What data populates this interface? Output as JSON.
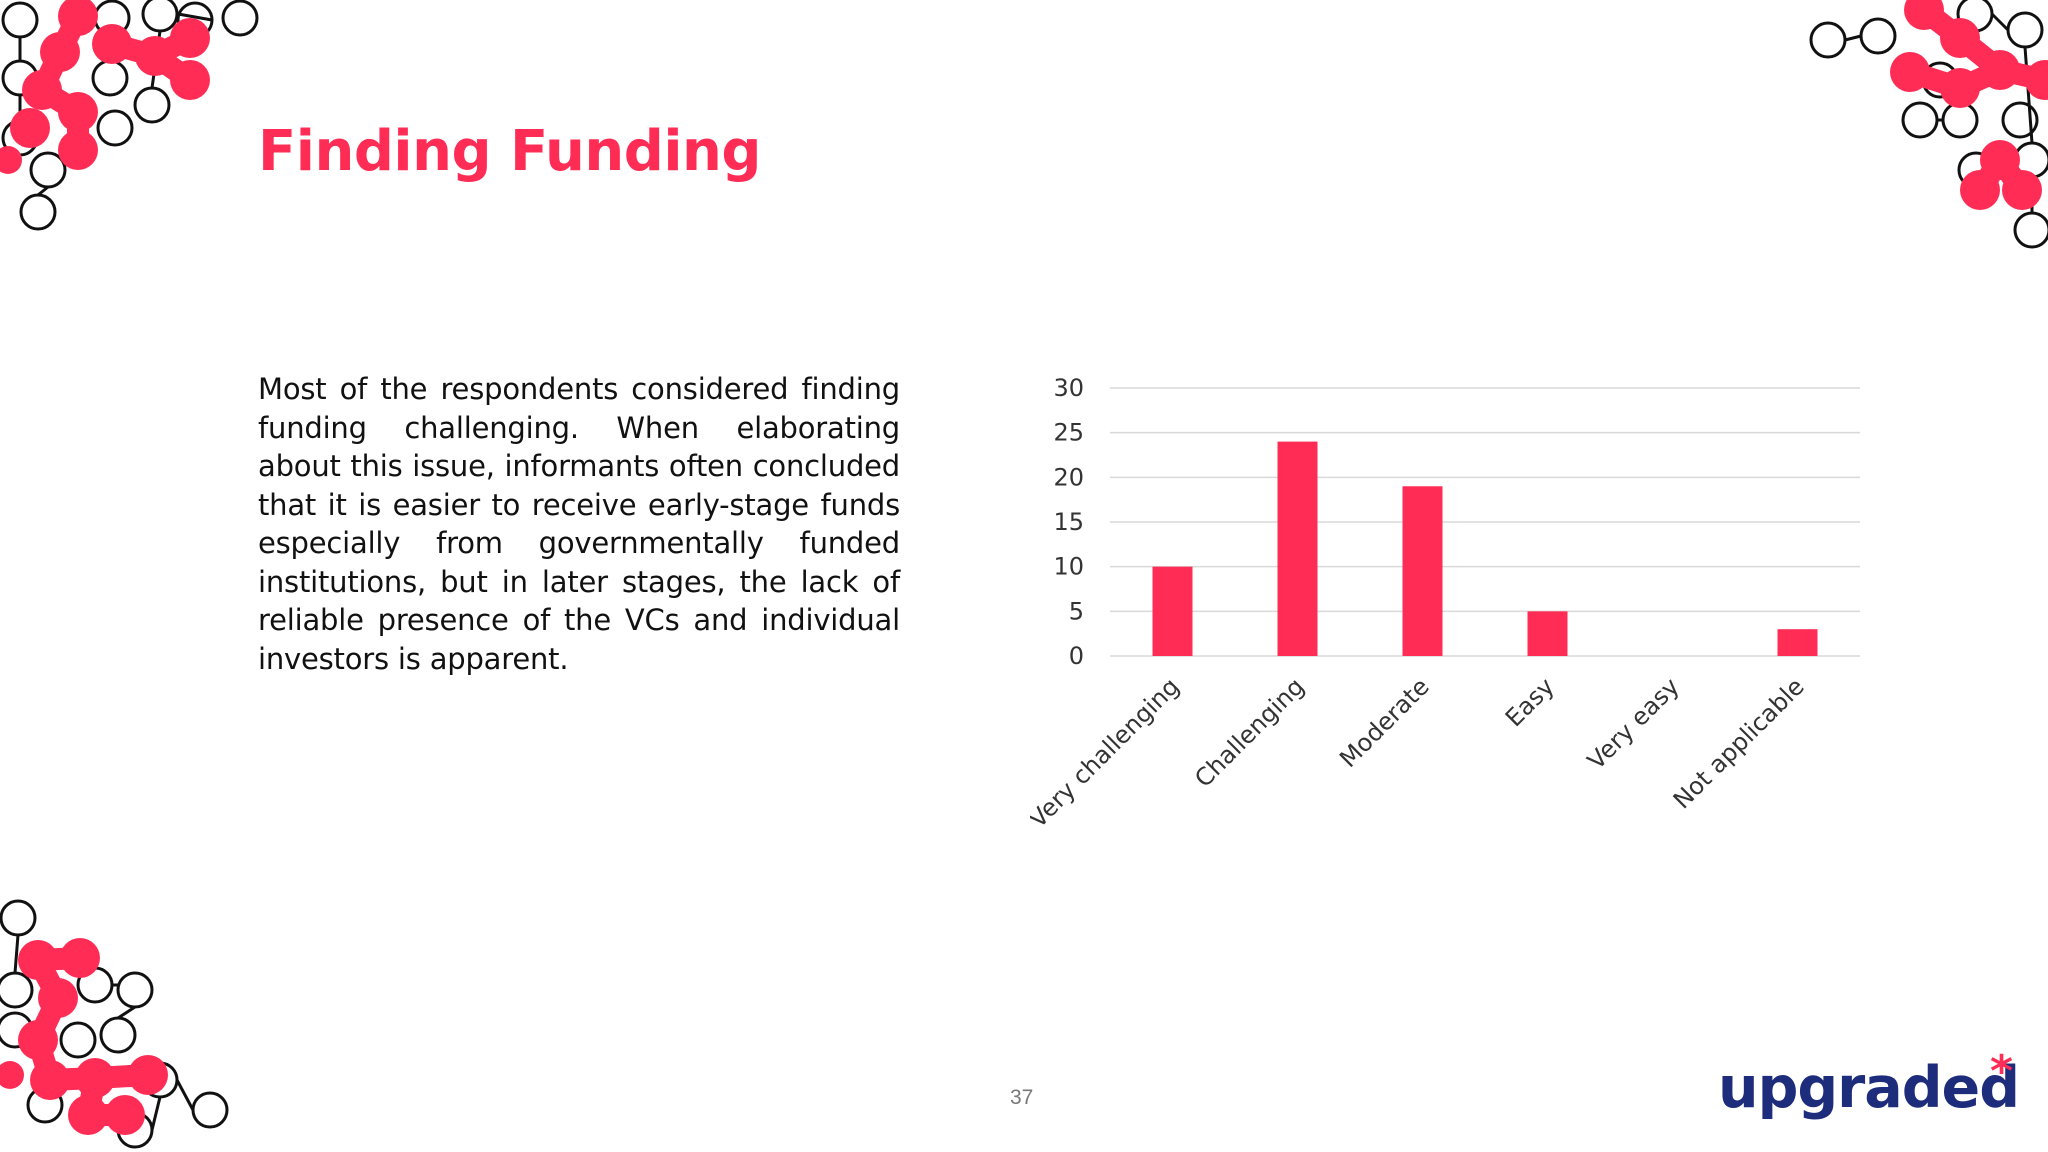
{
  "slide": {
    "title": "Finding Funding",
    "body": "Most of the respondents considered finding funding challenging. When elaborating about this issue, informants often concluded that it is easier to receive early-stage funds especially from governmentally funded institutions, but in later stages, the lack of reliable presence of the VCs and individual investors is apparent.",
    "page_number": "37"
  },
  "brand": {
    "logo_text": "upgraded",
    "logo_mark": "*",
    "logo_color": "#1e2c7c",
    "accent": "#ff2d55"
  },
  "decorations": {
    "icon": "molecule-pattern-icon",
    "fill_color": "#ff2d55",
    "outline_color": "#111111"
  },
  "chart_data": {
    "type": "bar",
    "title": "",
    "xlabel": "",
    "ylabel": "",
    "categories": [
      "Very challenging",
      "Challenging",
      "Moderate",
      "Easy",
      "Very easy",
      "Not applicable"
    ],
    "values": [
      10,
      24,
      19,
      5,
      0,
      3
    ],
    "ylim": [
      0,
      30
    ],
    "yticks": [
      0,
      5,
      10,
      15,
      20,
      25,
      30
    ],
    "grid": true,
    "legend": "none",
    "bar_color": "#ff2d55",
    "grid_color": "#d9d9d9",
    "label_color": "#333333"
  }
}
